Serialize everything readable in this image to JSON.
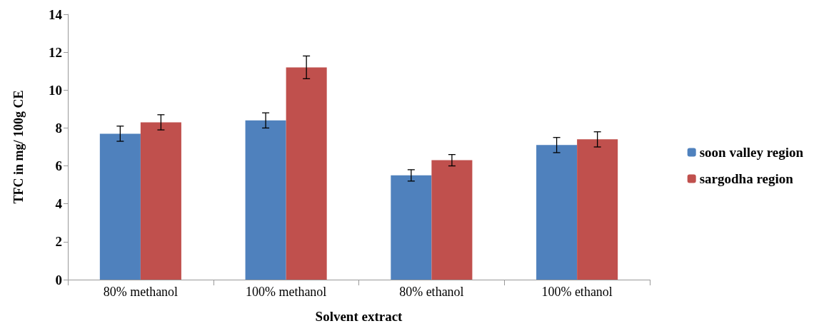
{
  "chart_data": {
    "type": "bar",
    "xlabel": "Solvent extract",
    "ylabel": "TFC in mg/ 100g CE",
    "categories": [
      "80% methanol",
      "100% methanol",
      "80% ethanol",
      "100% ethanol"
    ],
    "series": [
      {
        "name": "soon valley region",
        "color": "#4f81bd",
        "values": [
          7.7,
          8.4,
          5.5,
          7.1
        ],
        "errors": [
          0.4,
          0.4,
          0.3,
          0.4
        ]
      },
      {
        "name": "sargodha region",
        "color": "#c0504d",
        "values": [
          8.3,
          11.2,
          6.3,
          7.4
        ],
        "errors": [
          0.4,
          0.6,
          0.3,
          0.4
        ]
      }
    ],
    "ylim": [
      0,
      14
    ],
    "yticks": [
      0,
      2,
      4,
      6,
      8,
      10,
      12,
      14
    ],
    "grid": false,
    "legend": "right"
  }
}
